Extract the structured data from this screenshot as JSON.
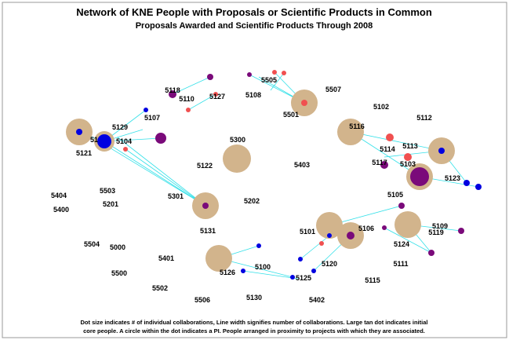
{
  "header": {
    "title": "Network of KNE People with Proposals or Scientific Products in Common",
    "subtitle": "Proposals Awarded and Scientific Products Through 2008"
  },
  "nodes": [
    {
      "label": "5118"
    },
    {
      "label": "5127"
    },
    {
      "label": "5110"
    },
    {
      "label": "5108"
    },
    {
      "label": "5505"
    },
    {
      "label": "5507"
    },
    {
      "label": "5501"
    },
    {
      "label": "5102"
    },
    {
      "label": "5107"
    },
    {
      "label": "5129"
    },
    {
      "label": "5116"
    },
    {
      "label": "5112"
    },
    {
      "label": "5113"
    },
    {
      "label": "5114"
    },
    {
      "label": "5117"
    },
    {
      "label": "5103"
    },
    {
      "label": "5123"
    },
    {
      "label": "51"
    },
    {
      "label": "5104"
    },
    {
      "label": "5121"
    },
    {
      "label": "5300"
    },
    {
      "label": "5122"
    },
    {
      "label": "5403"
    },
    {
      "label": "5404"
    },
    {
      "label": "5503"
    },
    {
      "label": "5400"
    },
    {
      "label": "5201"
    },
    {
      "label": "5301"
    },
    {
      "label": "5202"
    },
    {
      "label": "5105"
    },
    {
      "label": "5131"
    },
    {
      "label": "5101"
    },
    {
      "label": "5106"
    },
    {
      "label": "5109"
    },
    {
      "label": "5119"
    },
    {
      "label": "5124"
    },
    {
      "label": "5504"
    },
    {
      "label": "5000"
    },
    {
      "label": "5401"
    },
    {
      "label": "5111"
    },
    {
      "label": "5120"
    },
    {
      "label": "5100"
    },
    {
      "label": "5126"
    },
    {
      "label": "5125"
    },
    {
      "label": "5500"
    },
    {
      "label": "5115"
    },
    {
      "label": "5502"
    },
    {
      "label": "5506"
    },
    {
      "label": "5130"
    },
    {
      "label": "5402"
    }
  ],
  "footnote": {
    "line1": "Dot size indicates # of individual collaborations, Line width signifies number of collaborations. Large tan dot indicates initial",
    "line2": "core people. A circle within the dot indicates a PI. People arranged in proximity to projects with which they are associated."
  }
}
